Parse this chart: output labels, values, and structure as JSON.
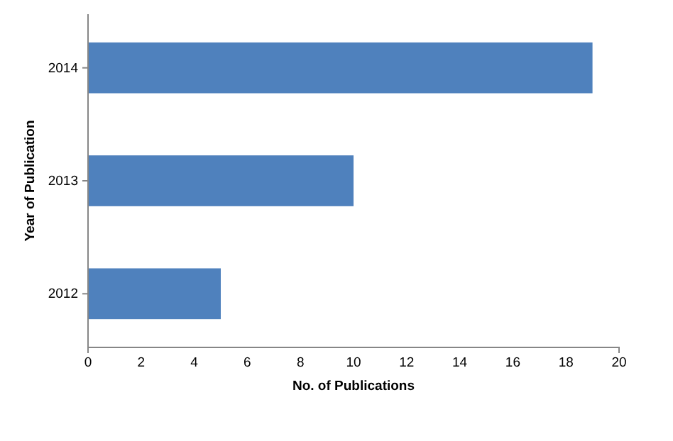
{
  "chart_data": {
    "type": "bar",
    "orientation": "horizontal",
    "categories": [
      "2014",
      "2013",
      "2012"
    ],
    "values": [
      19,
      10,
      5
    ],
    "color": "#4f81bd",
    "xlim": [
      0,
      20
    ],
    "xticks": [
      0,
      2,
      4,
      6,
      8,
      10,
      12,
      14,
      16,
      18,
      20
    ],
    "xlabel": "No. of Publications",
    "ylabel": "Year of Publication",
    "grid": false
  }
}
